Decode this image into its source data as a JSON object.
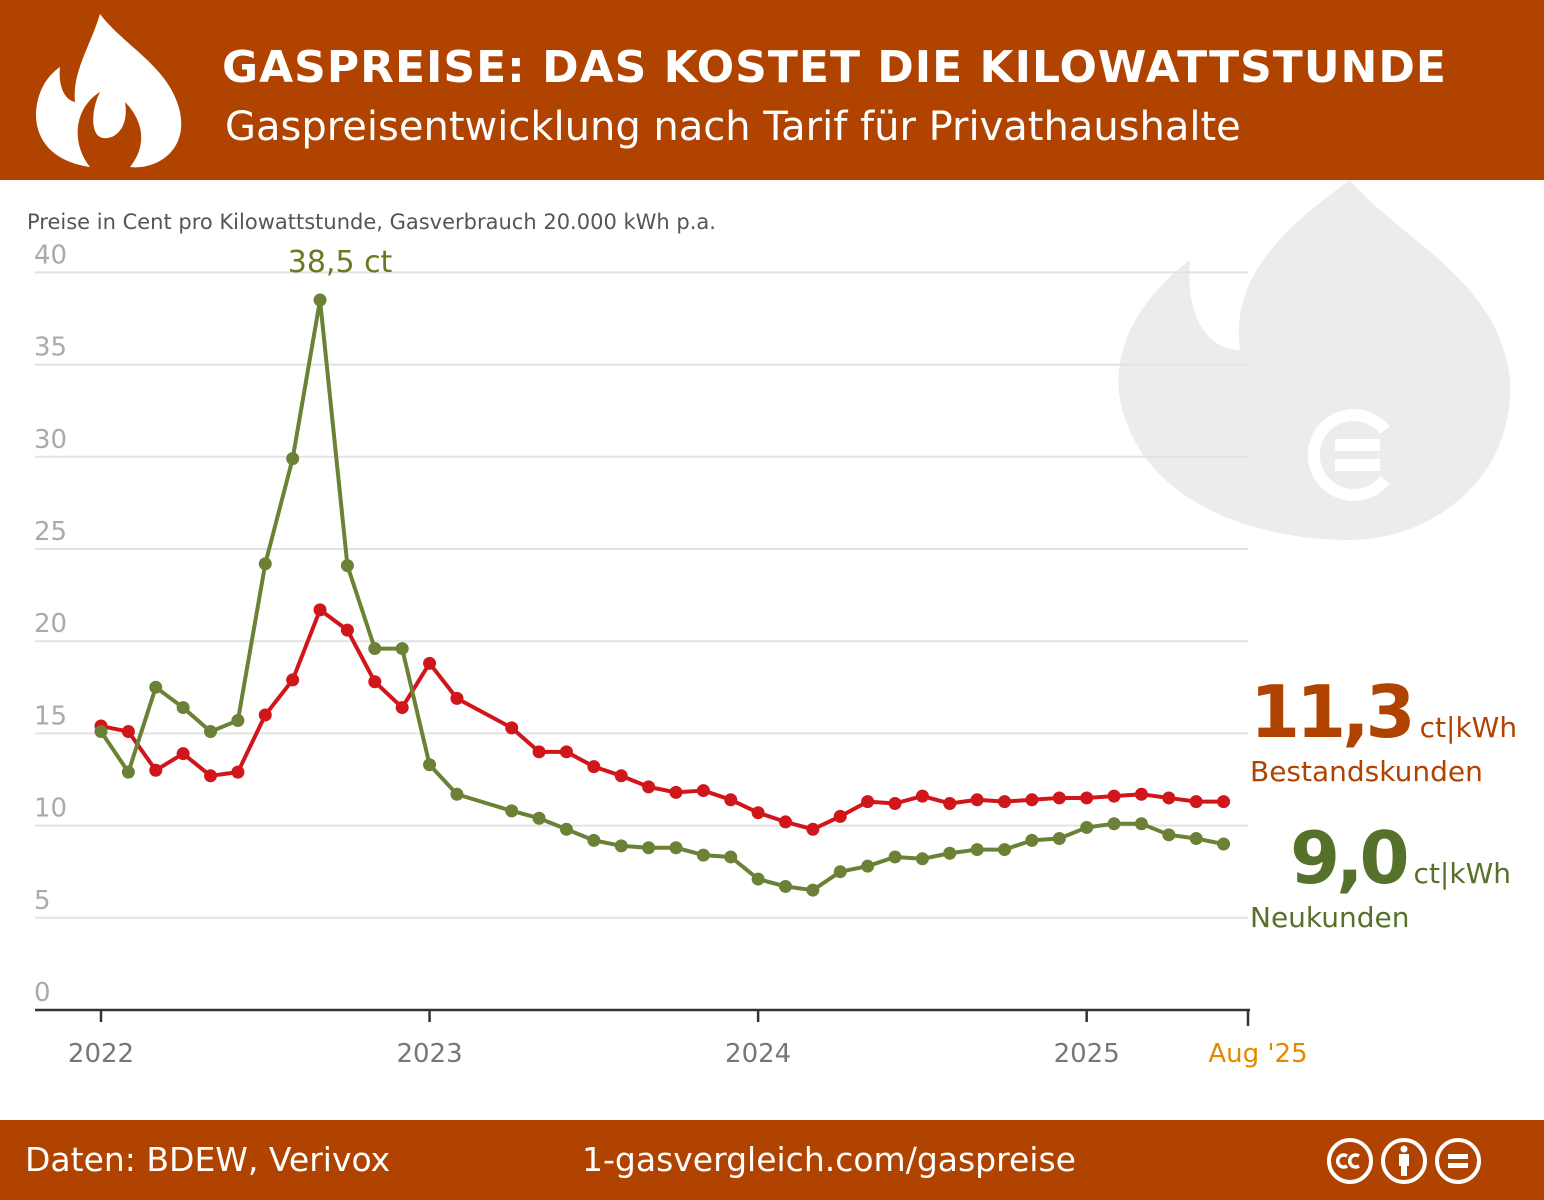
{
  "header": {
    "title": "GASPREISE: DAS KOSTET DIE KILOWATTSTUNDE",
    "subtitle": "Gaspreisentwicklung nach Tarif für Privathaushalte",
    "icon": "flame-icon"
  },
  "note": "Preise in Cent pro Kilowattstunde, Gasverbrauch 20.000 kWh p.a.",
  "colors": {
    "brand": "#B04300",
    "bestand": "#D0161A",
    "neu": "#6B8236",
    "bestand_label": "#B04300",
    "neu_label": "#55712A",
    "end_label": "#E08A00"
  },
  "callouts": {
    "bestand": {
      "value": "11,3",
      "unit": "ct|kWh",
      "label": "Bestandskunden"
    },
    "neu": {
      "value": "9,0",
      "unit": "ct|kWh",
      "label": "Neukunden"
    }
  },
  "footer": {
    "source": "Daten: BDEW, Verivox",
    "url": "1-gasvergleich.com/gaspreise",
    "license_icons": [
      "cc-icon",
      "by-icon",
      "nd-icon"
    ]
  },
  "chart_data": {
    "type": "line",
    "ylim": [
      0,
      40
    ],
    "yticks": [
      "0",
      "5",
      "10",
      "15",
      "20",
      "25",
      "30",
      "35",
      "40"
    ],
    "xtick_labels": [
      "2022",
      "2023",
      "2024",
      "2025"
    ],
    "x_end_label": "Aug '25",
    "grid": true,
    "peak_annotation": "38,5 ct",
    "x": [
      "2022-01",
      "2022-02",
      "2022-03",
      "2022-04",
      "2022-05",
      "2022-06",
      "2022-07",
      "2022-08",
      "2022-09",
      "2022-10",
      "2022-11",
      "2022-12",
      "2023-01",
      "2023-02",
      "2023-04",
      "2023-05",
      "2023-06",
      "2023-07",
      "2023-08",
      "2023-09",
      "2023-10",
      "2023-11",
      "2023-12",
      "2024-01",
      "2024-02",
      "2024-03",
      "2024-04",
      "2024-05",
      "2024-06",
      "2024-07",
      "2024-08",
      "2024-09",
      "2024-10",
      "2024-11",
      "2024-12",
      "2025-01",
      "2025-02",
      "2025-03",
      "2025-04",
      "2025-05",
      "2025-06"
    ],
    "series": [
      {
        "name": "Bestandskunden",
        "values": [
          15.4,
          15.1,
          13.0,
          13.9,
          12.7,
          12.9,
          16.0,
          17.9,
          21.7,
          20.6,
          17.8,
          16.4,
          18.8,
          16.9,
          15.3,
          14.0,
          14.0,
          13.2,
          12.7,
          12.1,
          11.8,
          11.9,
          11.4,
          10.7,
          10.2,
          9.8,
          10.5,
          11.3,
          11.2,
          11.6,
          11.2,
          11.4,
          11.3,
          11.4,
          11.5,
          11.5,
          11.6,
          11.7,
          11.5,
          11.3,
          11.3
        ]
      },
      {
        "name": "Neukunden",
        "values": [
          15.1,
          12.9,
          17.5,
          16.4,
          15.1,
          15.7,
          24.2,
          29.9,
          38.5,
          24.1,
          19.6,
          19.6,
          13.3,
          11.7,
          10.8,
          10.4,
          9.8,
          9.2,
          8.9,
          8.8,
          8.8,
          8.4,
          8.3,
          7.1,
          6.7,
          6.5,
          7.5,
          7.8,
          8.3,
          8.2,
          8.5,
          8.7,
          8.7,
          9.2,
          9.3,
          9.9,
          10.1,
          10.1,
          9.5,
          9.3,
          9.0
        ]
      }
    ]
  }
}
